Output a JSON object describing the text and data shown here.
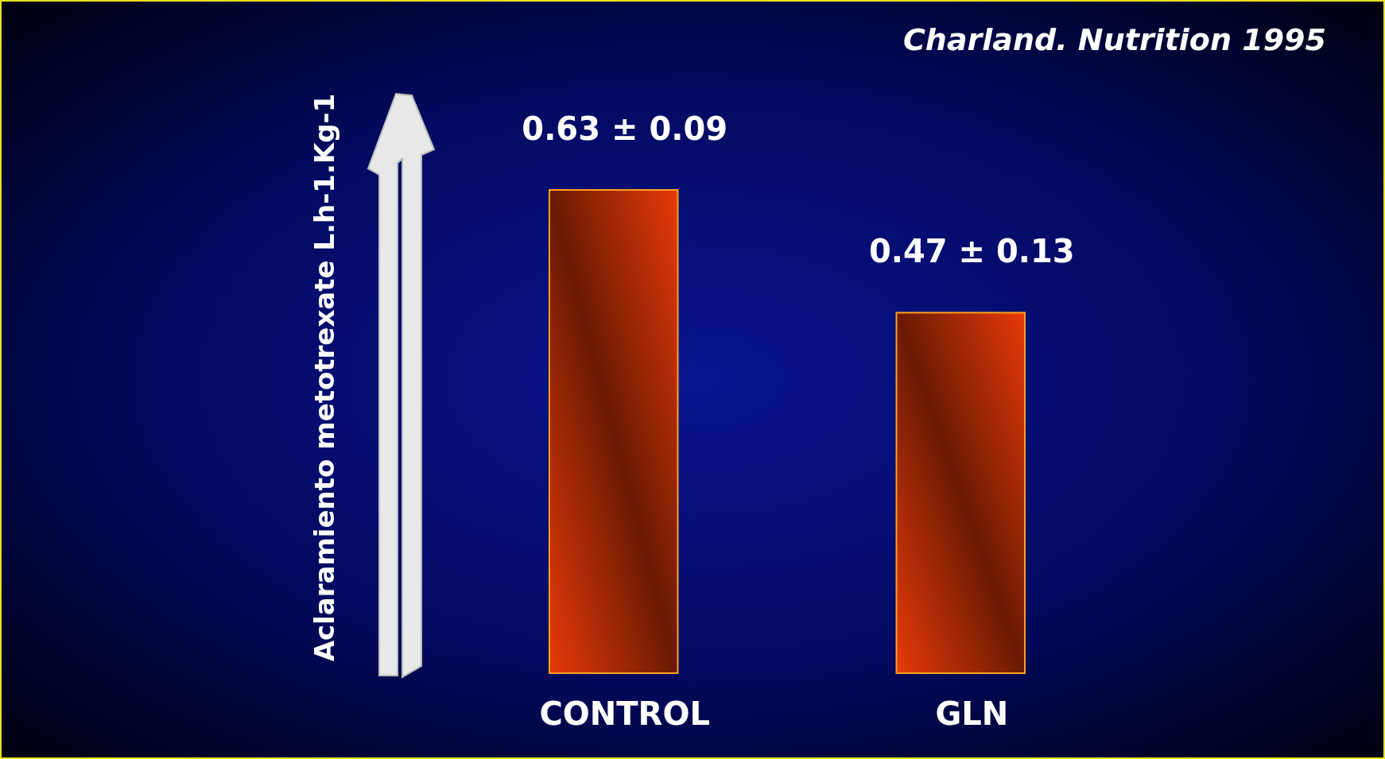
{
  "chart_data": {
    "type": "bar",
    "ylabel": "Aclaramiento metotrexate L.h-1.Kg-1",
    "categories": [
      "CONTROL",
      "GLN"
    ],
    "values": [
      0.63,
      0.47
    ],
    "color": "#e83a08",
    "value_labels": [
      "0.63 ± 0.09",
      "0.47 ± 0.13"
    ],
    "annotations": [
      "Charland. Nutrition 1995"
    ]
  }
}
